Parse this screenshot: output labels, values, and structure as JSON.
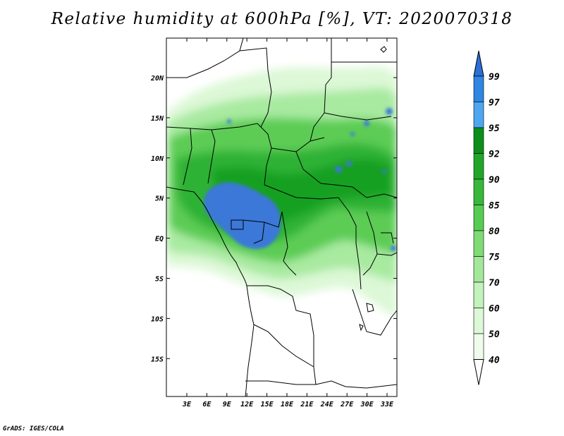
{
  "title": "Relative humidity at 600hPa [%], VT: 2020070318",
  "credit": "GrADS: IGES/COLA",
  "map": {
    "lat_labels": [
      "20N",
      "15N",
      "10N",
      "5N",
      "EQ",
      "5S",
      "10S",
      "15S"
    ],
    "lon_labels": [
      "3E",
      "6E",
      "9E",
      "12E",
      "15E",
      "18E",
      "21E",
      "24E",
      "27E",
      "30E",
      "33E"
    ]
  },
  "colorbar": {
    "labels": [
      "99",
      "97",
      "95",
      "92",
      "90",
      "85",
      "80",
      "75",
      "70",
      "60",
      "50",
      "40"
    ],
    "colors": [
      "#2c6fd6",
      "#2f86e3",
      "#4da6f0",
      "#0b8f1a",
      "#22a62a",
      "#38b83a",
      "#57cc52",
      "#7fdc75",
      "#a3e89a",
      "#c3f2bc",
      "#dcf8d6",
      "#effcec",
      "#ffffff"
    ]
  },
  "colors": {
    "blue": "#3a78d8",
    "green_dark": "#14a020",
    "green_mid": "#4cc848",
    "green_light": "#a8eaa0",
    "green_pale": "#dcf8d6"
  }
}
